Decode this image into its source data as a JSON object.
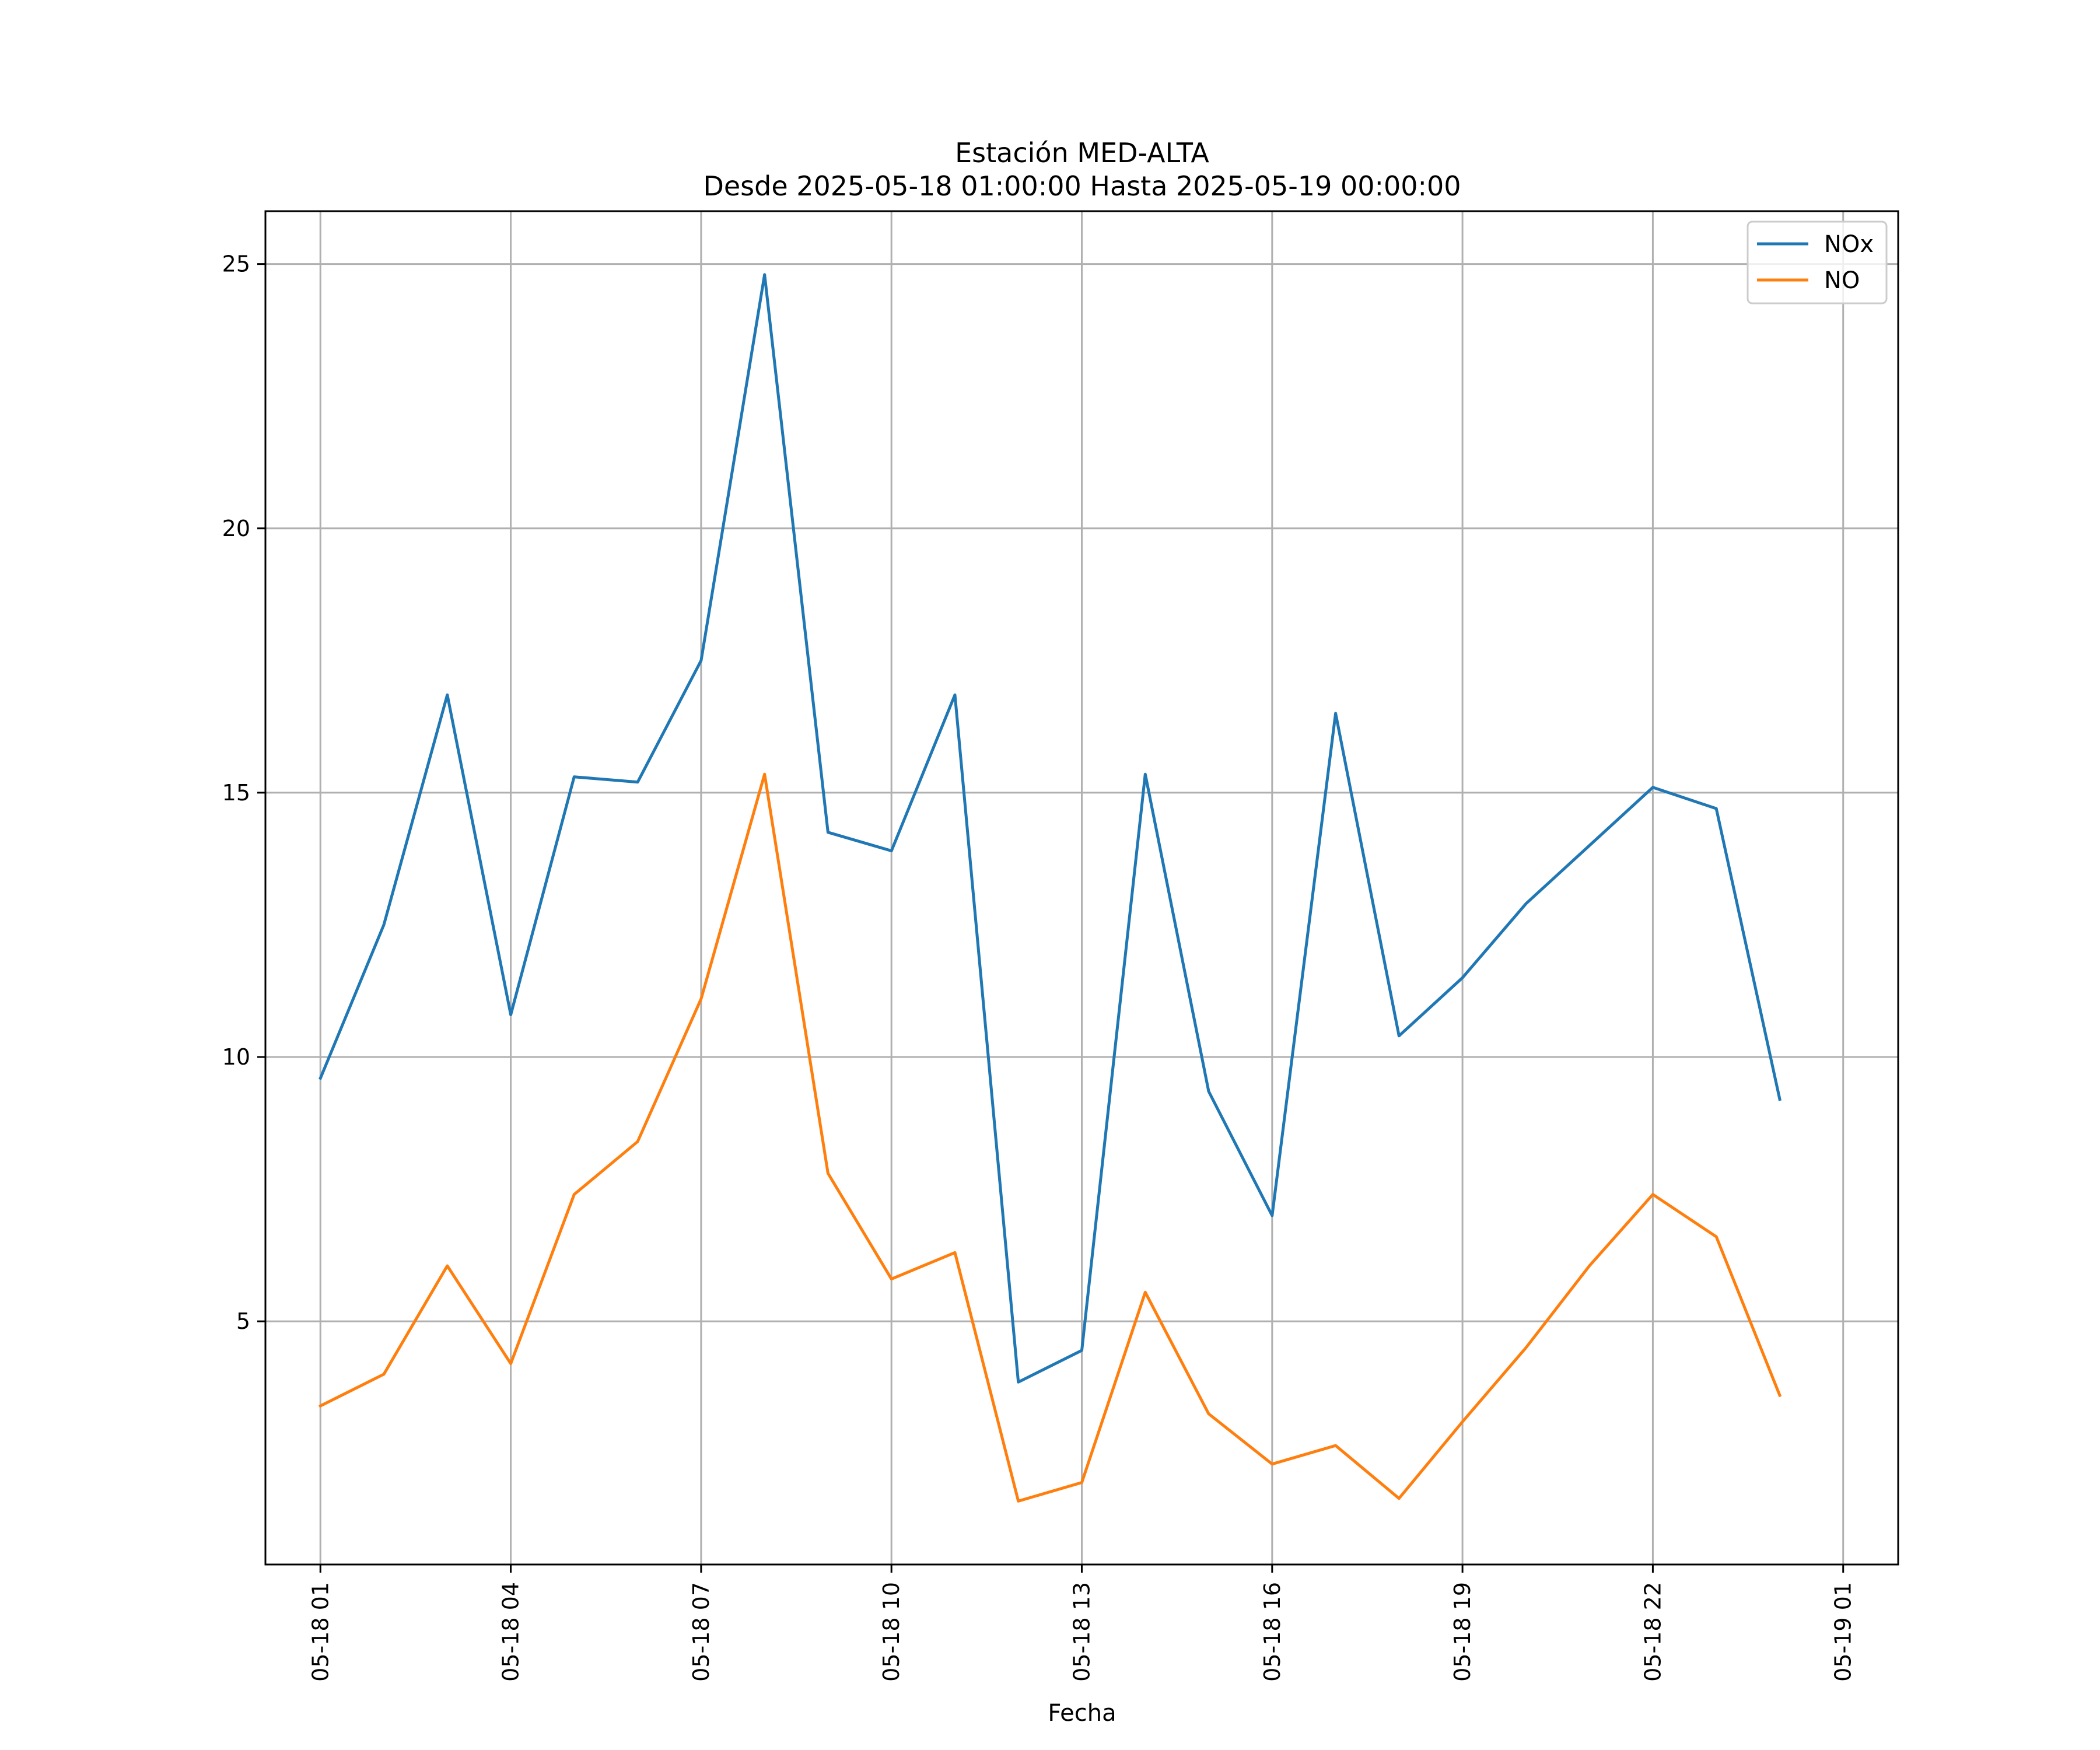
{
  "chart_data": {
    "type": "line",
    "title": "Estación MED-ALTA",
    "subtitle": "Desde 2025-05-18 01:00:00 Hasta 2025-05-19 00:00:00",
    "xlabel": "Fecha",
    "ylabel": "",
    "x": [
      "05-18 01",
      "05-18 02",
      "05-18 03",
      "05-18 04",
      "05-18 05",
      "05-18 06",
      "05-18 07",
      "05-18 08",
      "05-18 09",
      "05-18 10",
      "05-18 11",
      "05-18 12",
      "05-18 13",
      "05-18 14",
      "05-18 15",
      "05-18 16",
      "05-18 17",
      "05-18 18",
      "05-18 19",
      "05-18 20",
      "05-18 21",
      "05-18 22",
      "05-18 23",
      "05-19 00"
    ],
    "x_ticks": [
      "05-18 01",
      "05-18 04",
      "05-18 07",
      "05-18 10",
      "05-18 13",
      "05-18 16",
      "05-18 19",
      "05-18 22",
      "05-19 01"
    ],
    "xlim": [
      "05-18 00:08",
      "05-19 01:52"
    ],
    "y_ticks": [
      5,
      10,
      15,
      20,
      25
    ],
    "ylim": [
      0.4,
      26.0
    ],
    "grid": true,
    "legend_position": "top-right",
    "series": [
      {
        "name": "NOx",
        "color": "#1f77b4",
        "values": [
          9.6,
          12.5,
          16.85,
          10.8,
          15.3,
          15.2,
          17.5,
          24.8,
          14.25,
          13.9,
          16.85,
          3.85,
          4.45,
          15.35,
          9.35,
          7.0,
          16.5,
          10.4,
          11.5,
          12.9,
          14.0,
          15.1,
          14.7,
          9.2
        ]
      },
      {
        "name": "NO",
        "color": "#ff7f0e",
        "values": [
          3.4,
          4.0,
          6.05,
          4.2,
          7.4,
          8.4,
          11.1,
          15.35,
          7.8,
          5.8,
          6.3,
          1.6,
          1.95,
          5.55,
          3.25,
          2.3,
          2.65,
          1.65,
          3.1,
          4.5,
          6.05,
          7.4,
          6.6,
          3.6
        ]
      }
    ]
  }
}
